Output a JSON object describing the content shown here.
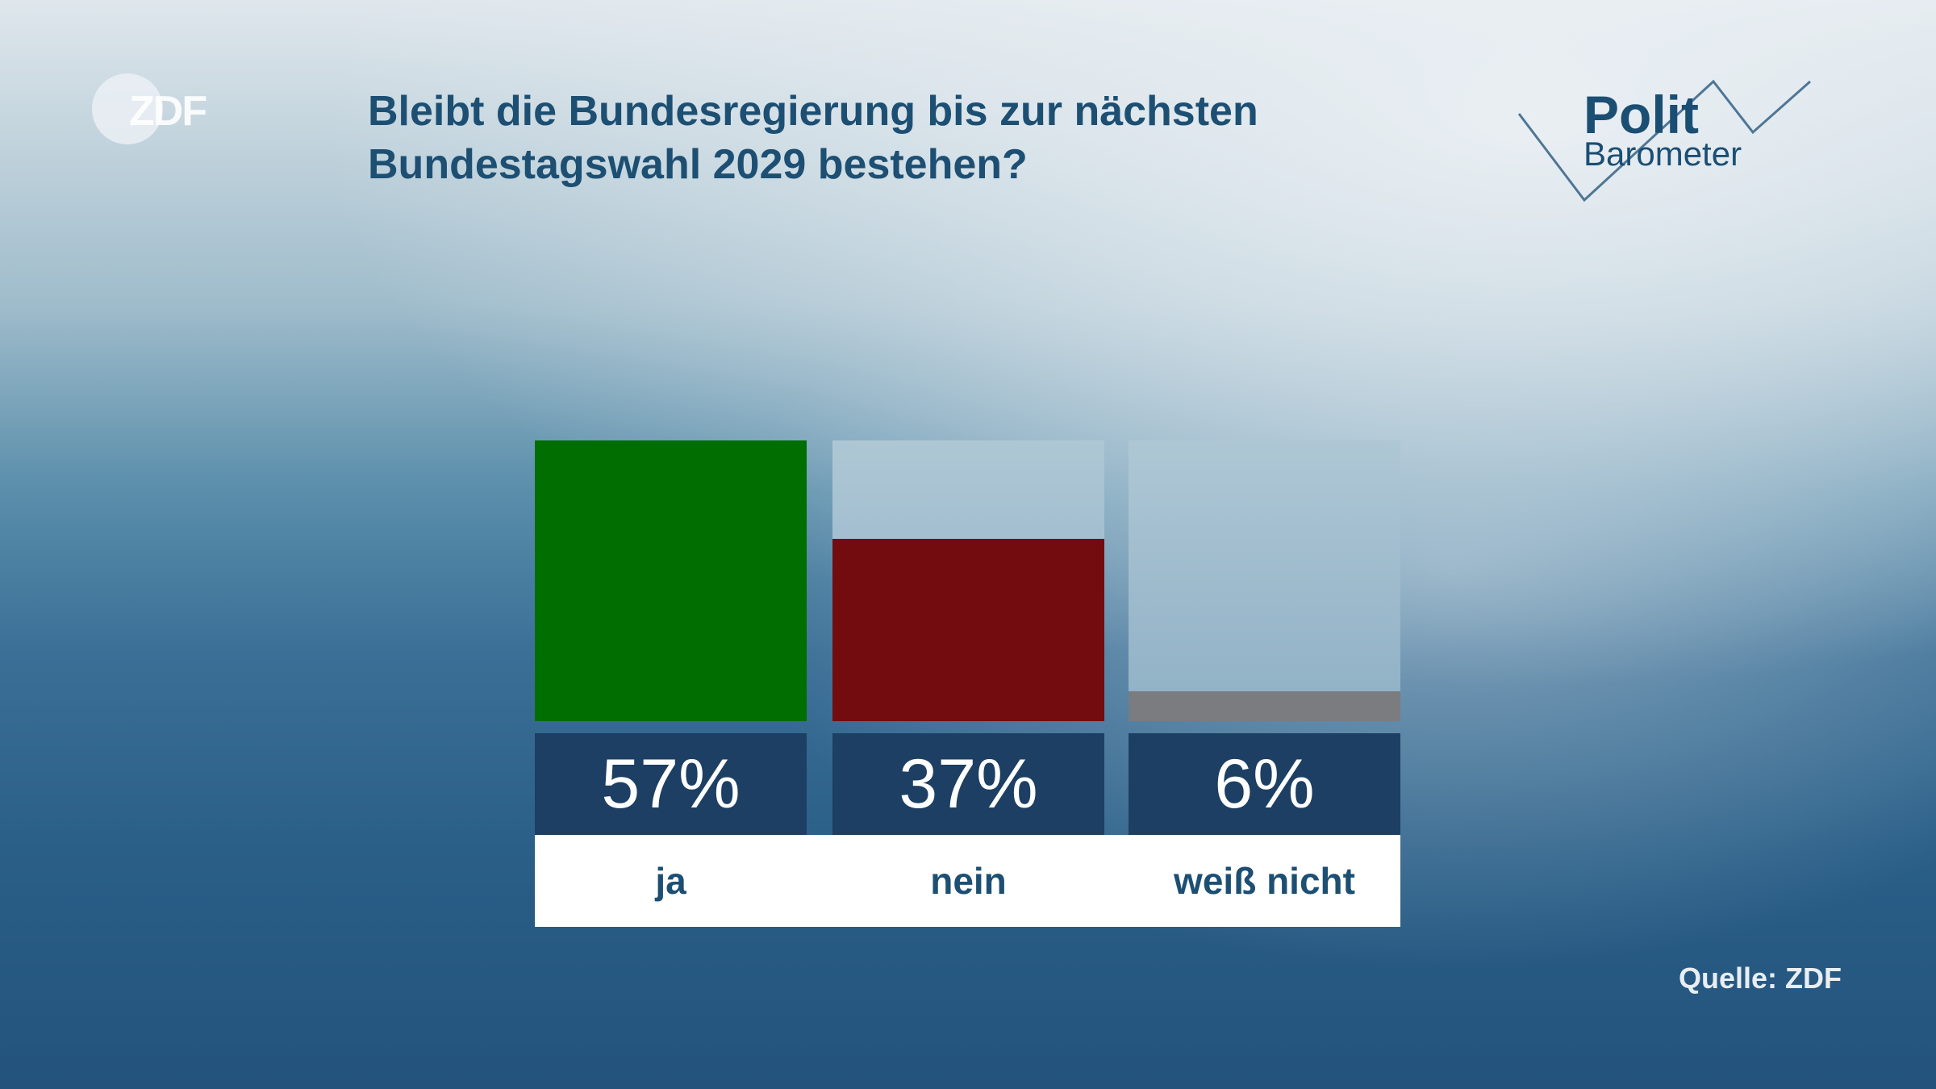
{
  "brand": {
    "logo_text": "ZDF",
    "barometer_line1": "Polit",
    "barometer_line2": "Barometer"
  },
  "title_line1": "Bleibt die Bundesregierung bis zur nächsten",
  "title_line2": "Bundestagswahl 2029 bestehen?",
  "source": "Quelle: ZDF",
  "chart_data": {
    "type": "bar",
    "title": "Bleibt die Bundesregierung bis zur nächsten Bundestagswahl 2029 bestehen?",
    "categories": [
      "ja",
      "nein",
      "weiß nicht"
    ],
    "values": [
      57,
      37,
      6
    ],
    "value_labels": [
      "57%",
      "37%",
      "6%"
    ],
    "unit": "%",
    "ylim": [
      0,
      57
    ],
    "colors": [
      "#006e00",
      "#720c0e",
      "#7a7c80"
    ],
    "grid": false
  }
}
